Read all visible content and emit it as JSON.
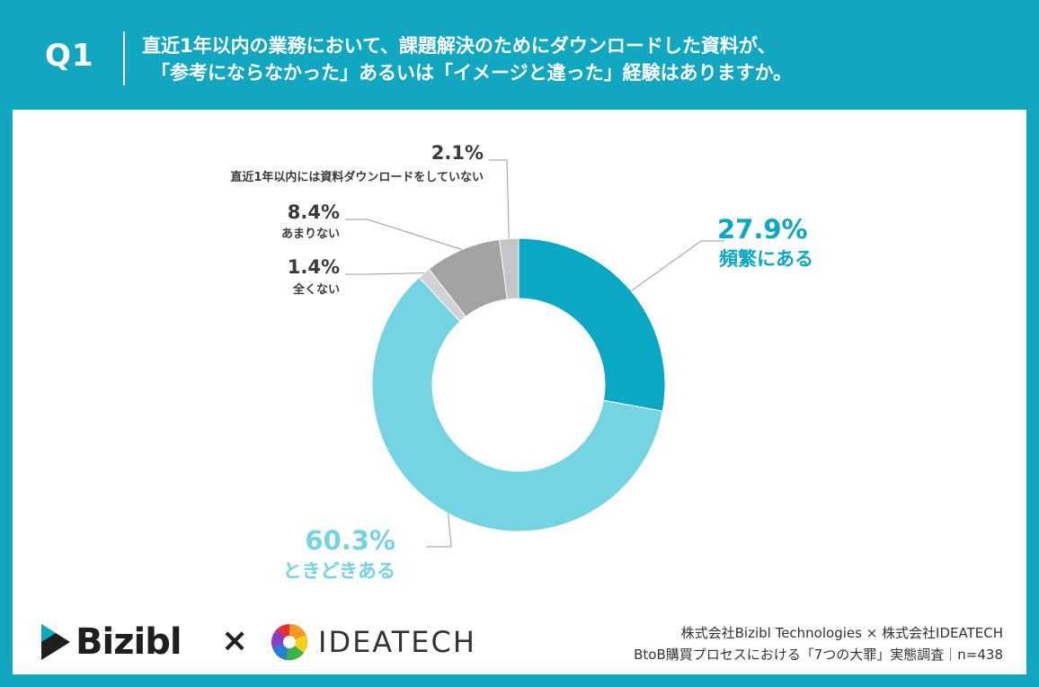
{
  "header": {
    "q_label": "Q1",
    "question_line1": "直近1年以内の業務において、課題解決のためにダウンロードした資料が、",
    "question_line2": "「参考にならなかった」あるいは「イメージと違った」経験はありますか。"
  },
  "colors": {
    "header_bg": "#12a7c1",
    "frequent": "#0aa8c4",
    "sometimes": "#74d4e1",
    "not_at_all": "#d2d2d4",
    "not_much": "#a3a3a6",
    "no_download": "#c5c5c8"
  },
  "chart_data": {
    "type": "pie",
    "donut": true,
    "slices": [
      {
        "label": "頻繁にある",
        "value": 27.9,
        "display": "27.9%"
      },
      {
        "label": "ときどきある",
        "value": 60.3,
        "display": "60.3%"
      },
      {
        "label": "全くない",
        "value": 1.4,
        "display": "1.4%"
      },
      {
        "label": "あまりない",
        "value": 8.4,
        "display": "8.4%"
      },
      {
        "label": "直近1年以内には資料ダウンロードをしていない",
        "value": 2.1,
        "display": "2.1%"
      }
    ]
  },
  "footer": {
    "logo_left": "Bizibl",
    "times": "×",
    "logo_right": "IDEATECH",
    "credit_line1": "株式会社Bizibl Technologies × 株式会社IDEATECH",
    "credit_line2": "BtoB購買プロセスにおける「7つの大罪」実態調査｜n=438"
  }
}
